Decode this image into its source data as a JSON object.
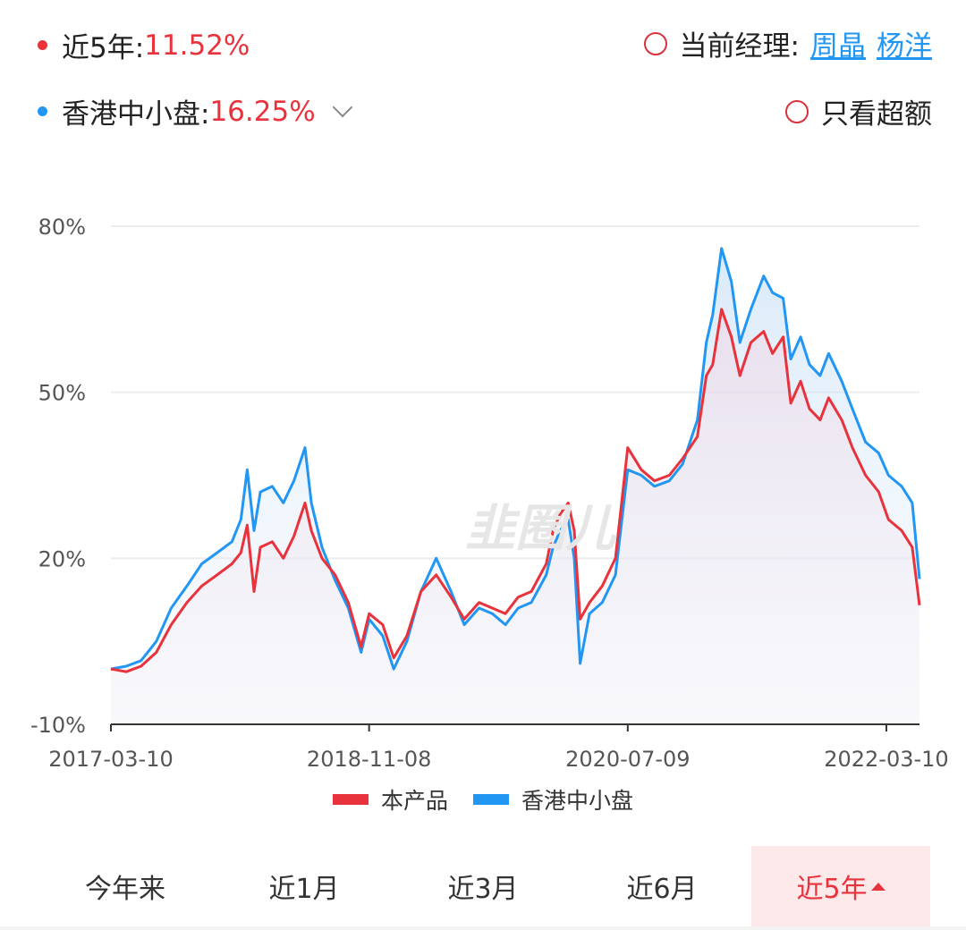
{
  "header": {
    "product_label": "近5年:",
    "product_return": "11.52%",
    "benchmark_label": "香港中小盘:",
    "benchmark_return": "16.25%",
    "manager_label": "当前经理:",
    "managers": [
      "周晶",
      "杨洋"
    ],
    "excess_label": "只看超额"
  },
  "colors": {
    "product": "#e8323c",
    "benchmark": "#2196f3",
    "accent": "#e8323c"
  },
  "tabs": [
    {
      "label": "今年来",
      "active": false
    },
    {
      "label": "近1月",
      "active": false
    },
    {
      "label": "近3月",
      "active": false
    },
    {
      "label": "近6月",
      "active": false
    },
    {
      "label": "近5年",
      "active": true
    }
  ],
  "chart_data": {
    "type": "line",
    "ylim": [
      -10,
      80
    ],
    "y_ticks": [
      -10,
      20,
      50,
      80
    ],
    "y_tick_labels": [
      "-10%",
      "20%",
      "50%",
      "80%"
    ],
    "x_range": [
      "2017-03-10",
      "2022-05-27"
    ],
    "x_tick_labels": [
      "2017-03-10",
      "2018-11-08",
      "2020-07-09",
      "2022-03-10"
    ],
    "grid": true,
    "legend_position": "bottom",
    "series": [
      {
        "name": "本产品",
        "points": [
          [
            "2017-03-10",
            0
          ],
          [
            "2017-04-15",
            -0.5
          ],
          [
            "2017-05-20",
            0.5
          ],
          [
            "2017-06-25",
            3
          ],
          [
            "2017-07-30",
            8
          ],
          [
            "2017-09-05",
            12
          ],
          [
            "2017-10-10",
            15
          ],
          [
            "2017-11-15",
            17
          ],
          [
            "2017-12-20",
            19
          ],
          [
            "2018-01-10",
            21
          ],
          [
            "2018-01-25",
            26
          ],
          [
            "2018-02-10",
            14
          ],
          [
            "2018-02-25",
            22
          ],
          [
            "2018-03-25",
            23
          ],
          [
            "2018-04-20",
            20
          ],
          [
            "2018-05-15",
            24
          ],
          [
            "2018-06-10",
            30
          ],
          [
            "2018-06-25",
            25
          ],
          [
            "2018-07-20",
            20
          ],
          [
            "2018-08-20",
            17
          ],
          [
            "2018-09-20",
            12
          ],
          [
            "2018-10-20",
            4
          ],
          [
            "2018-11-08",
            10
          ],
          [
            "2018-12-10",
            8
          ],
          [
            "2019-01-05",
            2
          ],
          [
            "2019-02-05",
            6
          ],
          [
            "2019-03-10",
            14
          ],
          [
            "2019-04-15",
            17
          ],
          [
            "2019-05-20",
            13
          ],
          [
            "2019-06-20",
            9
          ],
          [
            "2019-07-25",
            12
          ],
          [
            "2019-08-25",
            11
          ],
          [
            "2019-09-25",
            10
          ],
          [
            "2019-10-25",
            13
          ],
          [
            "2019-11-25",
            14
          ],
          [
            "2019-12-30",
            19
          ],
          [
            "2020-01-15",
            25
          ],
          [
            "2020-02-01",
            28
          ],
          [
            "2020-02-20",
            30
          ],
          [
            "2020-03-05",
            25
          ],
          [
            "2020-03-19",
            9
          ],
          [
            "2020-04-10",
            12
          ],
          [
            "2020-05-10",
            15
          ],
          [
            "2020-06-10",
            20
          ],
          [
            "2020-07-09",
            40
          ],
          [
            "2020-08-10",
            36
          ],
          [
            "2020-09-10",
            34
          ],
          [
            "2020-10-15",
            35
          ],
          [
            "2020-11-15",
            38
          ],
          [
            "2020-12-20",
            42
          ],
          [
            "2021-01-10",
            53
          ],
          [
            "2021-01-25",
            55
          ],
          [
            "2021-02-15",
            65
          ],
          [
            "2021-03-10",
            60
          ],
          [
            "2021-03-30",
            53
          ],
          [
            "2021-04-25",
            59
          ],
          [
            "2021-05-25",
            61
          ],
          [
            "2021-06-15",
            57
          ],
          [
            "2021-07-10",
            60
          ],
          [
            "2021-07-28",
            48
          ],
          [
            "2021-08-20",
            52
          ],
          [
            "2021-09-10",
            47
          ],
          [
            "2021-10-05",
            45
          ],
          [
            "2021-10-25",
            49
          ],
          [
            "2021-11-25",
            45
          ],
          [
            "2021-12-20",
            40
          ],
          [
            "2022-01-20",
            35
          ],
          [
            "2022-02-20",
            32
          ],
          [
            "2022-03-15",
            27
          ],
          [
            "2022-04-15",
            25
          ],
          [
            "2022-05-10",
            22
          ],
          [
            "2022-05-27",
            11.52
          ]
        ]
      },
      {
        "name": "香港中小盘",
        "points": [
          [
            "2017-03-10",
            0
          ],
          [
            "2017-04-15",
            0.5
          ],
          [
            "2017-05-20",
            1.5
          ],
          [
            "2017-06-25",
            5
          ],
          [
            "2017-07-30",
            11
          ],
          [
            "2017-09-05",
            15
          ],
          [
            "2017-10-10",
            19
          ],
          [
            "2017-11-15",
            21
          ],
          [
            "2017-12-20",
            23
          ],
          [
            "2018-01-10",
            27
          ],
          [
            "2018-01-25",
            36
          ],
          [
            "2018-02-10",
            25
          ],
          [
            "2018-02-25",
            32
          ],
          [
            "2018-03-25",
            33
          ],
          [
            "2018-04-20",
            30
          ],
          [
            "2018-05-15",
            34
          ],
          [
            "2018-06-10",
            40
          ],
          [
            "2018-06-25",
            30
          ],
          [
            "2018-07-20",
            22
          ],
          [
            "2018-08-20",
            16
          ],
          [
            "2018-09-20",
            11
          ],
          [
            "2018-10-20",
            3
          ],
          [
            "2018-11-08",
            9
          ],
          [
            "2018-12-10",
            6
          ],
          [
            "2019-01-05",
            0
          ],
          [
            "2019-02-05",
            5
          ],
          [
            "2019-03-10",
            14
          ],
          [
            "2019-04-15",
            20
          ],
          [
            "2019-05-20",
            14
          ],
          [
            "2019-06-20",
            8
          ],
          [
            "2019-07-25",
            11
          ],
          [
            "2019-08-25",
            10
          ],
          [
            "2019-09-25",
            8
          ],
          [
            "2019-10-25",
            11
          ],
          [
            "2019-11-25",
            12
          ],
          [
            "2019-12-30",
            17
          ],
          [
            "2020-01-15",
            22
          ],
          [
            "2020-02-01",
            25
          ],
          [
            "2020-02-20",
            27
          ],
          [
            "2020-03-05",
            20
          ],
          [
            "2020-03-19",
            1
          ],
          [
            "2020-04-10",
            10
          ],
          [
            "2020-05-10",
            12
          ],
          [
            "2020-06-10",
            17
          ],
          [
            "2020-07-09",
            36
          ],
          [
            "2020-08-10",
            35
          ],
          [
            "2020-09-10",
            33
          ],
          [
            "2020-10-15",
            34
          ],
          [
            "2020-11-15",
            37
          ],
          [
            "2020-12-20",
            45
          ],
          [
            "2021-01-10",
            59
          ],
          [
            "2021-01-25",
            64
          ],
          [
            "2021-02-15",
            76
          ],
          [
            "2021-03-10",
            70
          ],
          [
            "2021-03-30",
            59
          ],
          [
            "2021-04-25",
            65
          ],
          [
            "2021-05-25",
            71
          ],
          [
            "2021-06-15",
            68
          ],
          [
            "2021-07-10",
            67
          ],
          [
            "2021-07-28",
            56
          ],
          [
            "2021-08-20",
            60
          ],
          [
            "2021-09-10",
            55
          ],
          [
            "2021-10-05",
            53
          ],
          [
            "2021-10-25",
            57
          ],
          [
            "2021-11-25",
            52
          ],
          [
            "2021-12-20",
            47
          ],
          [
            "2022-01-20",
            41
          ],
          [
            "2022-02-20",
            39
          ],
          [
            "2022-03-15",
            35
          ],
          [
            "2022-04-15",
            33
          ],
          [
            "2022-05-10",
            30
          ],
          [
            "2022-05-27",
            16.25
          ]
        ]
      }
    ]
  }
}
